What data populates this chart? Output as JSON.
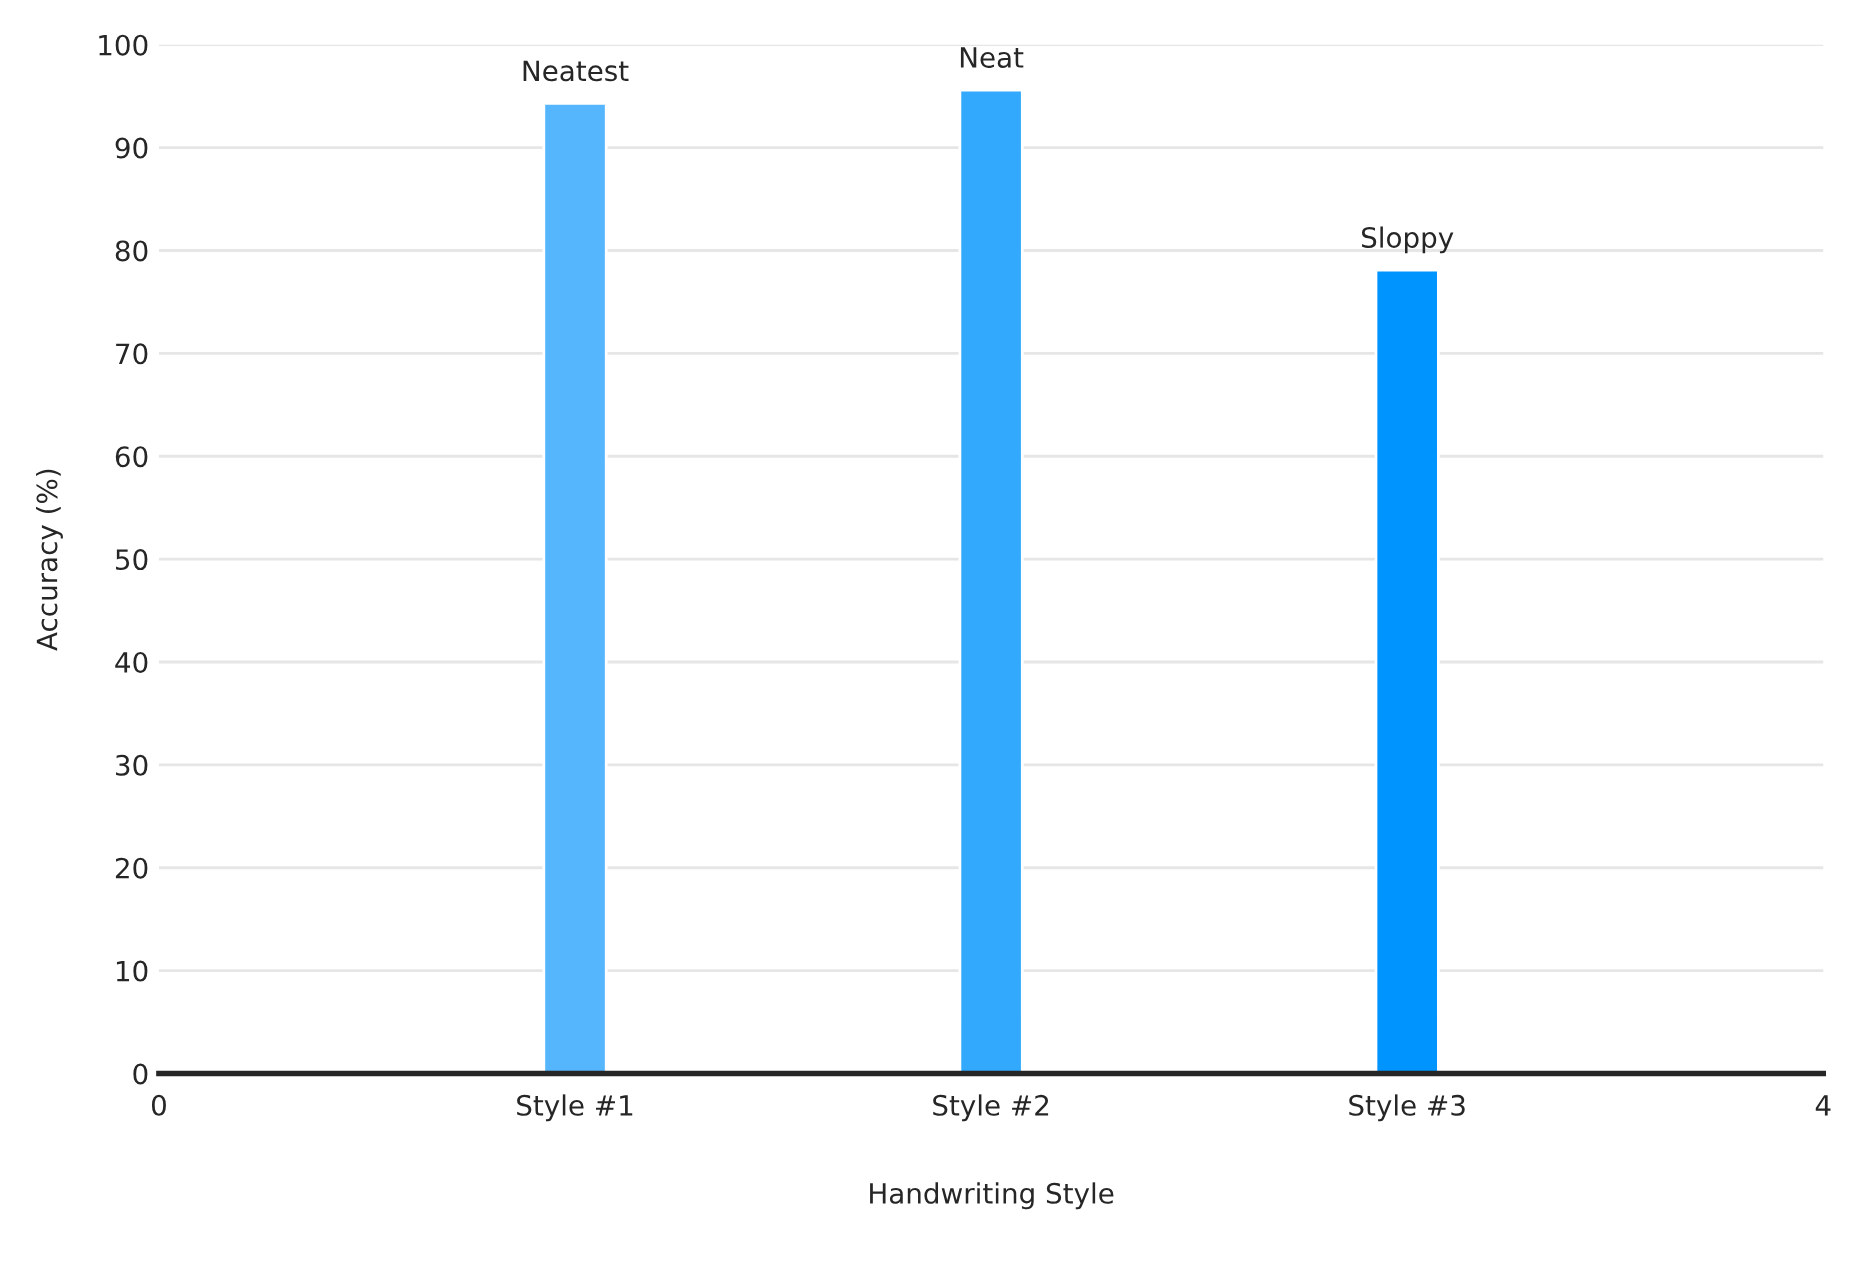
{
  "chart_data": {
    "type": "bar",
    "xlabel": "Handwriting Style",
    "ylabel": "Accuracy (%)",
    "x": [
      1,
      2,
      3
    ],
    "values": [
      94.3,
      95.6,
      78.1
    ],
    "colors": [
      "#55b5fd",
      "#33a9fe",
      "#0094ff"
    ],
    "xlim": [
      0,
      4
    ],
    "xticks": [
      0,
      {
        "value": 1,
        "label": "Style #1"
      },
      {
        "value": 2,
        "label": "Style #2"
      },
      {
        "value": 3,
        "label": "Style #3"
      },
      4
    ],
    "ylim": [
      0,
      100
    ],
    "yticks": [
      0,
      10,
      20,
      30,
      40,
      50,
      60,
      70,
      80,
      90,
      100
    ],
    "grid": "y",
    "annotations": [
      {
        "text": "Neatest",
        "x": 1,
        "y": 94.3
      },
      {
        "text": "Neat",
        "x": 2,
        "y": 95.6
      },
      {
        "text": "Sloppy",
        "x": 3,
        "y": 78.1
      }
    ]
  }
}
